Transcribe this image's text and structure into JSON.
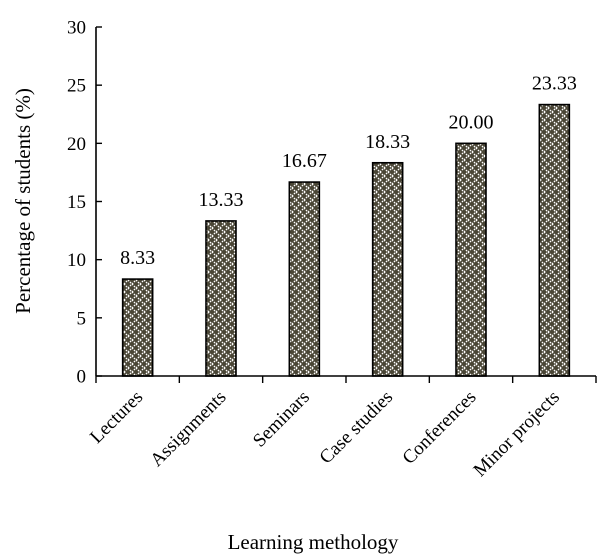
{
  "chart_data": {
    "type": "bar",
    "categories": [
      "Lectures",
      "Assignments",
      "Seminars",
      "Case studies",
      "Conferences",
      "Minor projects"
    ],
    "values": [
      8.33,
      13.33,
      16.67,
      18.33,
      20.0,
      23.33
    ],
    "data_labels": [
      "8.33",
      "13.33",
      "16.67",
      "18.33",
      "20.00",
      "23.33"
    ],
    "title": "",
    "xlabel": "Learning methology",
    "ylabel": "Percentage of students (%)",
    "ylim": [
      0,
      30
    ],
    "yticks": [
      "0",
      "5",
      "10",
      "15",
      "20",
      "25",
      "30"
    ],
    "grid": false,
    "legend": "none",
    "bar_fill_color": "#4a4636",
    "bar_pattern_color": "#ffffff"
  }
}
